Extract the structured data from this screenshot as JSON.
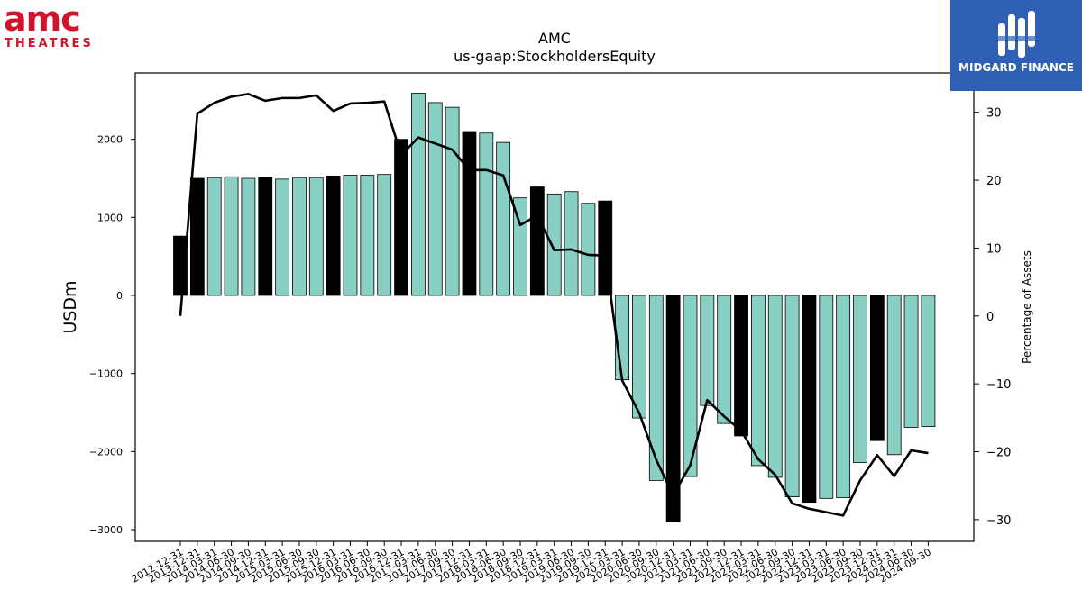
{
  "brand_left": {
    "big": "amc",
    "small": "THEATRES",
    "color": "#d0142c"
  },
  "brand_right": {
    "text": "MIDGARD FINANCE",
    "bg_color": "#2f5fb3"
  },
  "chart_data": {
    "type": "bar",
    "title": "AMC",
    "subtitle": "us-gaap:StockholdersEquity",
    "ylabel": "USDm",
    "y2label": "Percentage of Assets",
    "ylim": [
      -3150,
      2850
    ],
    "y2lim": [
      -33.2,
      35.8
    ],
    "yticks": [
      -3000,
      -2000,
      -1000,
      0,
      1000,
      2000
    ],
    "y2ticks": [
      -30,
      -20,
      -10,
      0,
      10,
      20,
      30
    ],
    "categories": [
      "2012-12-31",
      "2013-12-31",
      "2014-03-31",
      "2014-06-30",
      "2014-09-30",
      "2014-12-31",
      "2015-03-31",
      "2015-06-30",
      "2015-09-30",
      "2015-12-31",
      "2016-03-31",
      "2016-06-30",
      "2016-09-30",
      "2016-12-31",
      "2017-03-31",
      "2017-06-30",
      "2017-09-30",
      "2017-12-31",
      "2018-03-31",
      "2018-06-30",
      "2018-09-30",
      "2018-12-31",
      "2019-03-31",
      "2019-06-30",
      "2019-09-30",
      "2019-12-31",
      "2020-03-31",
      "2020-06-30",
      "2020-09-30",
      "2020-12-31",
      "2021-03-31",
      "2021-06-30",
      "2021-09-30",
      "2021-12-31",
      "2022-03-31",
      "2022-06-30",
      "2022-09-30",
      "2022-12-31",
      "2023-03-31",
      "2023-06-30",
      "2023-09-30",
      "2023-12-31",
      "2024-03-31",
      "2024-06-30",
      "2024-09-30"
    ],
    "series": [
      {
        "type": "bar",
        "values": [
          760,
          1500,
          1510,
          1520,
          1500,
          1510,
          1490,
          1510,
          1510,
          1530,
          1540,
          1540,
          1550,
          2000,
          2590,
          2470,
          2410,
          2100,
          2080,
          1960,
          1250,
          1390,
          1300,
          1330,
          1180,
          1210,
          -1080,
          -1570,
          -2370,
          -2900,
          -2320,
          -1410,
          -1640,
          -1800,
          -2180,
          -2330,
          -2580,
          -2650,
          -2600,
          -2590,
          -2140,
          -1860,
          -2040,
          -1690,
          -1680
        ],
        "highlight": [
          true,
          true,
          false,
          false,
          false,
          true,
          false,
          false,
          false,
          true,
          false,
          false,
          false,
          true,
          false,
          false,
          false,
          true,
          false,
          false,
          false,
          true,
          false,
          false,
          false,
          true,
          false,
          false,
          false,
          true,
          false,
          false,
          false,
          true,
          false,
          false,
          false,
          true,
          false,
          false,
          false,
          true,
          false,
          false,
          false
        ]
      },
      {
        "type": "line",
        "axis": "right",
        "values": [
          0,
          29.8,
          31.4,
          32.3,
          32.7,
          31.7,
          32.1,
          32.1,
          32.5,
          30.2,
          31.3,
          31.4,
          31.6,
          23.7,
          26.3,
          25.4,
          24.5,
          21.5,
          21.5,
          20.7,
          13.4,
          14.8,
          9.7,
          9.8,
          9.0,
          8.9,
          -9.5,
          -14.3,
          -21.2,
          -26.4,
          -22.0,
          -12.4,
          -14.8,
          -16.9,
          -21.1,
          -23.4,
          -27.6,
          -28.4,
          -28.9,
          -29.4,
          -24.2,
          -20.5,
          -23.6,
          -19.8,
          -20.2
        ]
      }
    ],
    "colors": {
      "bar": "#88d0c4",
      "bar_highlight": "#000000",
      "line": "#000000"
    }
  }
}
